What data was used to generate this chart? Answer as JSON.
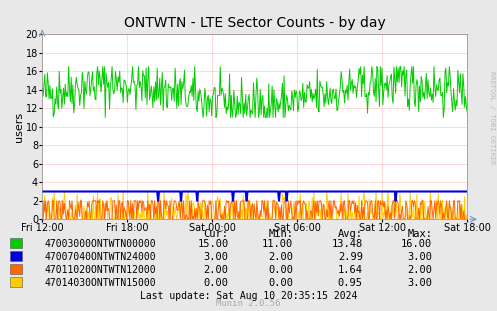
{
  "title": "ONTWTN - LTE Sector Counts - by day",
  "ylabel": "users",
  "ylim": [
    0,
    20
  ],
  "yticks": [
    0,
    2,
    4,
    6,
    8,
    10,
    12,
    14,
    16,
    18,
    20
  ],
  "xtick_labels": [
    "Fri 12:00",
    "Fri 18:00",
    "Sat 00:00",
    "Sat 06:00",
    "Sat 12:00",
    "Sat 18:00"
  ],
  "background_color": "#e8e8e8",
  "plot_bg_color": "#ffffff",
  "grid_color": "#ffaaaa",
  "series": [
    {
      "label": "47003000ONTWTN00000",
      "color": "#00cc00",
      "cur": "15.00",
      "min": "11.00",
      "avg": "13.48",
      "max": "16.00",
      "base": 13.48,
      "noise": 1.4,
      "clip_lo": 11.0,
      "clip_hi": 16.5
    },
    {
      "label": "47007040ONTWTN24000",
      "color": "#0000dd",
      "cur": "3.00",
      "min": "2.00",
      "avg": "2.99",
      "max": "3.00",
      "base": 3.0,
      "noise": 0.05,
      "clip_lo": 2.0,
      "clip_hi": 3.0
    },
    {
      "label": "47011020ONTWTN12000",
      "color": "#ff6600",
      "cur": "2.00",
      "min": "0.00",
      "avg": "1.64",
      "max": "2.00",
      "base": 1.6,
      "noise": 1.0,
      "clip_lo": 0.0,
      "clip_hi": 2.0
    },
    {
      "label": "47014030ONTWTN15000",
      "color": "#ffcc00",
      "cur": "0.00",
      "min": "0.00",
      "avg": "0.95",
      "max": "3.00",
      "base": 1.0,
      "noise": 1.2,
      "clip_lo": 0.0,
      "clip_hi": 3.0
    }
  ],
  "watermark": "RRDTOOL / TOBI OETIKER",
  "munin_version": "Munin 2.0.56",
  "last_update": "Last update: Sat Aug 10 20:35:15 2024",
  "n_points": 500
}
